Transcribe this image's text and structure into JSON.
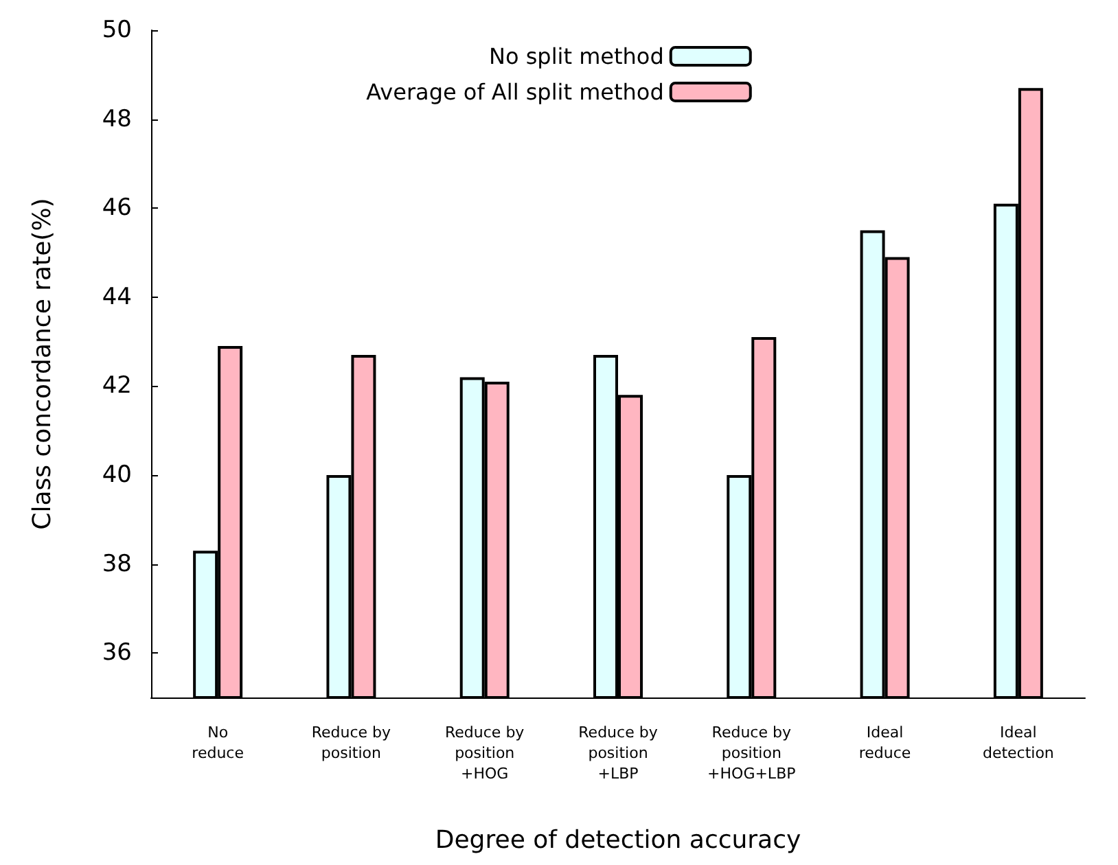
{
  "chart_data": {
    "type": "bar",
    "xlabel": "Degree of detection accuracy",
    "ylabel": "Class concordance rate(%)",
    "categories": [
      "No\nreduce",
      "Reduce by\nposition",
      "Reduce by\nposition\n+HOG",
      "Reduce by\nposition\n+LBP",
      "Reduce by\nposition\n+HOG+LBP",
      "Ideal\nreduce",
      "Ideal\ndetection"
    ],
    "series": [
      {
        "name": "No split method",
        "color": "#e0ffff",
        "values": [
          38.3,
          40.0,
          42.2,
          42.7,
          40.0,
          45.5,
          46.1
        ]
      },
      {
        "name": "Average of All split method",
        "color": "#ffb6c1",
        "values": [
          42.9,
          42.7,
          42.1,
          41.8,
          43.1,
          44.9,
          48.7
        ]
      }
    ],
    "ylim": [
      35,
      50
    ],
    "yticks": [
      36,
      38,
      40,
      42,
      44,
      46,
      48,
      50
    ],
    "grid": false,
    "legend": "top"
  }
}
